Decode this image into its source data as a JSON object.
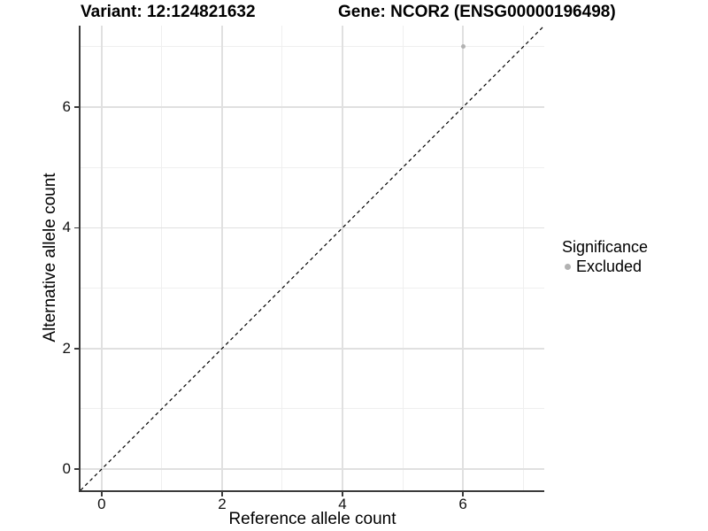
{
  "chart_data": {
    "type": "scatter",
    "title_left": "Variant: 12:124821632",
    "title_right": "Gene: NCOR2 (ENSG00000196498)",
    "xlabel": "Reference allele count",
    "ylabel": "Alternative allele count",
    "xlim": [
      -0.35,
      7.35
    ],
    "ylim": [
      -0.35,
      7.35
    ],
    "major_ticks": [
      0,
      2,
      4,
      6
    ],
    "minor_ticks": [
      1,
      3,
      5,
      7
    ],
    "grid": true,
    "points": [
      {
        "x": 6,
        "y": 7,
        "significance": "Excluded"
      }
    ],
    "identity_line": {
      "style": "dashed",
      "slope": 1,
      "intercept": 0
    },
    "legend": {
      "title": "Significance",
      "position": "right",
      "entries": [
        {
          "label": "Excluded",
          "color": "#b2b2b2"
        }
      ]
    },
    "colors": {
      "point": "#b2b2b2",
      "grid_major": "#e0e0e0",
      "grid_minor": "#efefef",
      "axis": "#3b3b3b",
      "identity_line": "#000000"
    }
  }
}
